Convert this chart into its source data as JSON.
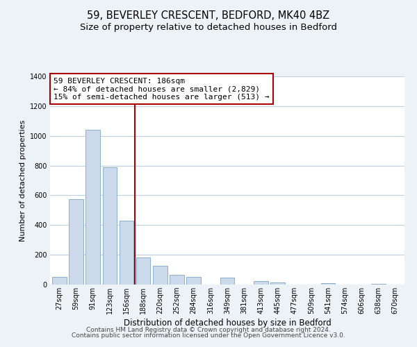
{
  "title": "59, BEVERLEY CRESCENT, BEDFORD, MK40 4BZ",
  "subtitle": "Size of property relative to detached houses in Bedford",
  "xlabel": "Distribution of detached houses by size in Bedford",
  "ylabel": "Number of detached properties",
  "categories": [
    "27sqm",
    "59sqm",
    "91sqm",
    "123sqm",
    "156sqm",
    "188sqm",
    "220sqm",
    "252sqm",
    "284sqm",
    "316sqm",
    "349sqm",
    "381sqm",
    "413sqm",
    "445sqm",
    "477sqm",
    "509sqm",
    "541sqm",
    "574sqm",
    "606sqm",
    "638sqm",
    "670sqm"
  ],
  "values": [
    50,
    575,
    1040,
    790,
    430,
    180,
    125,
    65,
    50,
    0,
    48,
    0,
    25,
    15,
    0,
    0,
    10,
    0,
    0,
    5,
    0
  ],
  "bar_color": "#ccd9ea",
  "bar_edge_color": "#8ab0cf",
  "vline_color": "#aa0000",
  "annotation_line1": "59 BEVERLEY CRESCENT: 186sqm",
  "annotation_line2": "← 84% of detached houses are smaller (2,829)",
  "annotation_line3": "15% of semi-detached houses are larger (513) →",
  "annotation_box_color": "#aa0000",
  "ylim": [
    0,
    1400
  ],
  "yticks": [
    0,
    200,
    400,
    600,
    800,
    1000,
    1200,
    1400
  ],
  "footer_line1": "Contains HM Land Registry data © Crown copyright and database right 2024.",
  "footer_line2": "Contains public sector information licensed under the Open Government Licence v3.0.",
  "background_color": "#edf2f7",
  "plot_background": "#ffffff",
  "grid_color": "#c0cfe0",
  "title_fontsize": 10.5,
  "subtitle_fontsize": 9.5,
  "annotation_fontsize": 8,
  "footer_fontsize": 6.5,
  "ylabel_fontsize": 8,
  "xlabel_fontsize": 8.5,
  "tick_fontsize": 7
}
